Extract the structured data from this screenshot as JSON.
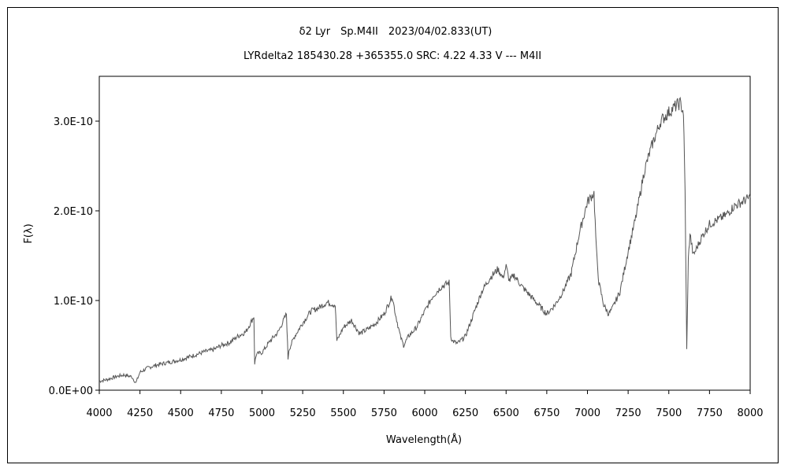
{
  "chart_data": {
    "type": "line",
    "title": "δ2 Lyr　Sp.M4II　2023/04/02.833(UT)",
    "subtitle": "LYRdelta2 185430.28 +365355.0 SRC: 4.22 4.33 V ‑‑‑ M4II",
    "xlabel": "Wavelength(Å)",
    "ylabel": "F(λ)",
    "xlim": [
      4000,
      8000
    ],
    "ylim": [
      0,
      3.5e-10
    ],
    "grid": false,
    "x_ticks": [
      4000,
      4250,
      4500,
      4750,
      5000,
      5250,
      5500,
      5750,
      6000,
      6250,
      6500,
      6750,
      7000,
      7250,
      7500,
      7750,
      8000
    ],
    "x_tick_labels": [
      "4000",
      "4250",
      "4500",
      "4750",
      "5000",
      "5250",
      "5500",
      "5750",
      "6000",
      "6250",
      "6500",
      "6750",
      "7000",
      "7250",
      "7500",
      "7750",
      "8000"
    ],
    "y_ticks": [
      0,
      1e-10,
      2e-10,
      3e-10
    ],
    "y_tick_labels": [
      "0.0E+00",
      "1.0E-10",
      "2.0E-10",
      "3.0E-10"
    ],
    "line_color": "#555555",
    "series": [
      {
        "x": [
          4000,
          4050,
          4100,
          4150,
          4200,
          4225,
          4250,
          4300,
          4350,
          4400,
          4450,
          4500,
          4550,
          4600,
          4650,
          4700,
          4750,
          4800,
          4850,
          4900,
          4950,
          4955,
          4965,
          5000,
          5050,
          5100,
          5150,
          5160,
          5165,
          5200,
          5250,
          5300,
          5350,
          5400,
          5450,
          5460,
          5500,
          5550,
          5600,
          5650,
          5700,
          5750,
          5800,
          5820,
          5850,
          5870,
          5900,
          5950,
          6000,
          6050,
          6100,
          6150,
          6160,
          6170,
          6200,
          6250,
          6300,
          6350,
          6400,
          6450,
          6480,
          6500,
          6520,
          6550,
          6600,
          6650,
          6700,
          6750,
          6800,
          6850,
          6900,
          6950,
          7000,
          7040,
          7055,
          7070,
          7100,
          7130,
          7150,
          7200,
          7250,
          7300,
          7350,
          7400,
          7450,
          7500,
          7550,
          7570,
          7590,
          7600,
          7610,
          7620,
          7630,
          7650,
          7700,
          7750,
          7800,
          7850,
          7900,
          7950,
          8000
        ],
        "y": [
          1e-11,
          1.2e-11,
          1.5e-11,
          1.7e-11,
          1.5e-11,
          8e-12,
          2e-11,
          2.5e-11,
          2.8e-11,
          3e-11,
          3.2e-11,
          3.4e-11,
          3.7e-11,
          4e-11,
          4.3e-11,
          4.5e-11,
          5e-11,
          5.3e-11,
          6e-11,
          6.5e-11,
          8.2e-11,
          3e-11,
          4e-11,
          4.2e-11,
          5.5e-11,
          6.5e-11,
          8.5e-11,
          3.5e-11,
          4.5e-11,
          6e-11,
          7.5e-11,
          8.8e-11,
          9.2e-11,
          9.8e-11,
          9.5e-11,
          5.5e-11,
          7e-11,
          7.8e-11,
          6.3e-11,
          6.8e-11,
          7.5e-11,
          8.5e-11,
          1.05e-10,
          8.5e-11,
          6e-11,
          5e-11,
          6e-11,
          7e-11,
          8.8e-11,
          1.05e-10,
          1.15e-10,
          1.2e-10,
          6e-11,
          5.5e-11,
          5.2e-11,
          6e-11,
          8.5e-11,
          1.1e-10,
          1.25e-10,
          1.35e-10,
          1.25e-10,
          1.38e-10,
          1.22e-10,
          1.28e-10,
          1.15e-10,
          1.05e-10,
          9.5e-11,
          8.5e-11,
          9.5e-11,
          1.1e-10,
          1.3e-10,
          1.75e-10,
          2.1e-10,
          2.2e-10,
          1.55e-10,
          1.2e-10,
          9.5e-11,
          8.5e-11,
          9e-11,
          1.1e-10,
          1.55e-10,
          1.95e-10,
          2.45e-10,
          2.75e-10,
          3e-10,
          3.1e-10,
          3.18e-10,
          3.2e-10,
          3.1e-10,
          2.2e-10,
          4.5e-11,
          1.45e-10,
          1.75e-10,
          1.5e-10,
          1.7e-10,
          1.85e-10,
          1.9e-10,
          1.95e-10,
          2.05e-10,
          2.1e-10,
          2.15e-10
        ]
      }
    ]
  }
}
